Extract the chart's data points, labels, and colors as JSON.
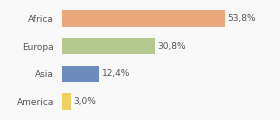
{
  "categories": [
    "Africa",
    "Europa",
    "Asia",
    "America"
  ],
  "values": [
    53.8,
    30.8,
    12.4,
    3.0
  ],
  "labels": [
    "53,8%",
    "30,8%",
    "12,4%",
    "3,0%"
  ],
  "bar_colors": [
    "#e8a87c",
    "#b5c98e",
    "#6b8cba",
    "#f0d060"
  ],
  "background_color": "#f8f8f8",
  "label_fontsize": 6.5,
  "category_fontsize": 6.5,
  "bar_height": 0.6,
  "xlim_max": 70
}
